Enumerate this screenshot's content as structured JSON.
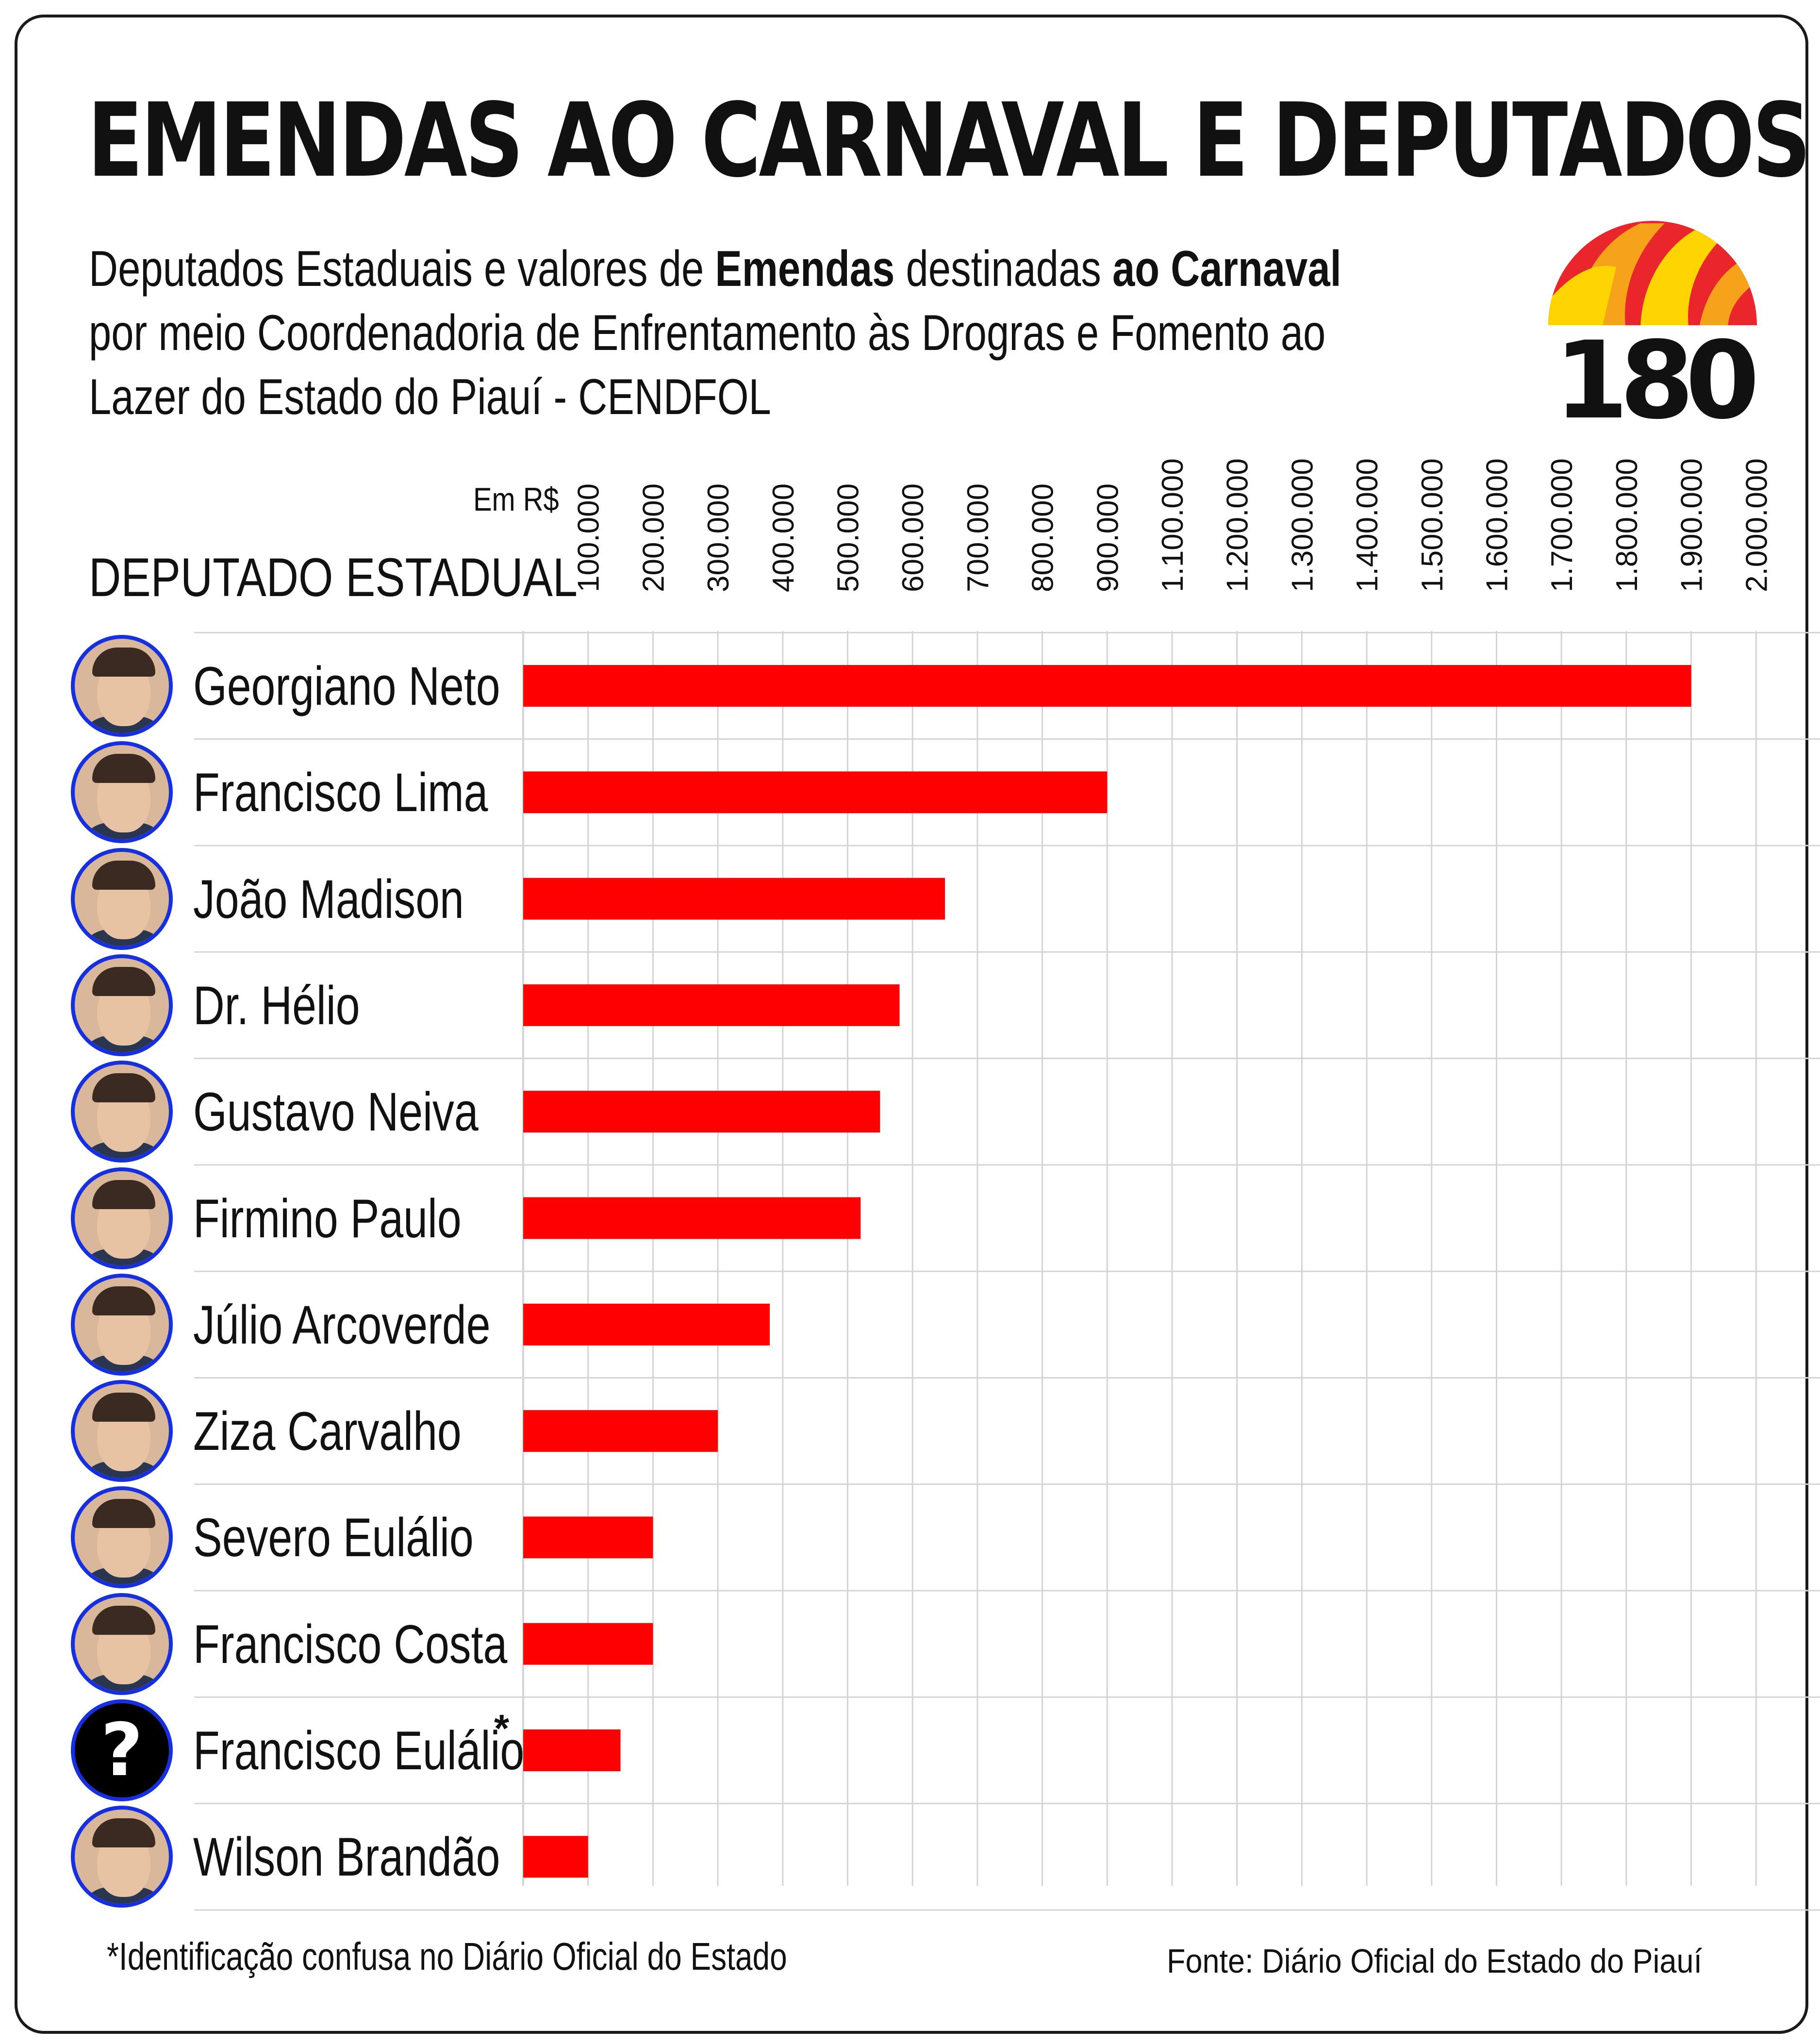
{
  "title": "EMENDAS AO CARNAVAL E DEPUTADOS",
  "subtitle": {
    "line1_a": "Deputados Estaduais e valores de ",
    "line1_b": "Emendas",
    "line1_c": " destinadas ",
    "line1_d": "ao Carnaval",
    "line2": "por meio Coordenadoria de Enfrentamento às Drogras e Fomento ao",
    "line3": "Lazer do Estado do Piauí - CENDFOL"
  },
  "logo": {
    "text": "180",
    "colors": [
      "#e8262b",
      "#f7a21b",
      "#ffd400"
    ]
  },
  "unit_label": "Em R$",
  "row_header": "DEPUTADO ESTADUAL",
  "colors": {
    "bar": "#ff0000",
    "grid": "#d4d4d4",
    "avatar_border": "#1630e0"
  },
  "chart_data": {
    "type": "bar",
    "orientation": "horizontal",
    "categories": [
      "Georgiano Neto",
      "Francisco Lima",
      "João Madison",
      "Dr. Hélio",
      "Gustavo Neiva",
      "Firmino Paulo",
      "Júlio Arcoverde",
      "Ziza Carvalho",
      "Severo Eulálio",
      "Francisco Costa",
      "Francisco Eulálio",
      "Wilson Brandão"
    ],
    "values": [
      1800000,
      900000,
      650000,
      580000,
      550000,
      520000,
      380000,
      300000,
      200000,
      200000,
      150000,
      100000
    ],
    "xlim": [
      0,
      2000000
    ],
    "tick_labels": [
      "100.000",
      "200.000",
      "300.000",
      "400.000",
      "500.000",
      "600.000",
      "700.000",
      "800.000",
      "900.000",
      "1.100.000",
      "1.200.000",
      "1.300.000",
      "1.400.000",
      "1.500.000",
      "1.600.000",
      "1.700.000",
      "1.800.000",
      "1.900.000",
      "2.000.000"
    ],
    "xlabel": "Em R$",
    "ylabel": "DEPUTADO ESTADUAL",
    "grid": true
  },
  "asterisk_mark": "*",
  "unknown_avatar_symbol": "?",
  "unknown_avatar_index": 10,
  "footnote": "*Identificação confusa no Diário Oficial do Estado",
  "source": "Fonte: Diário Oficial do Estado do Piauí"
}
